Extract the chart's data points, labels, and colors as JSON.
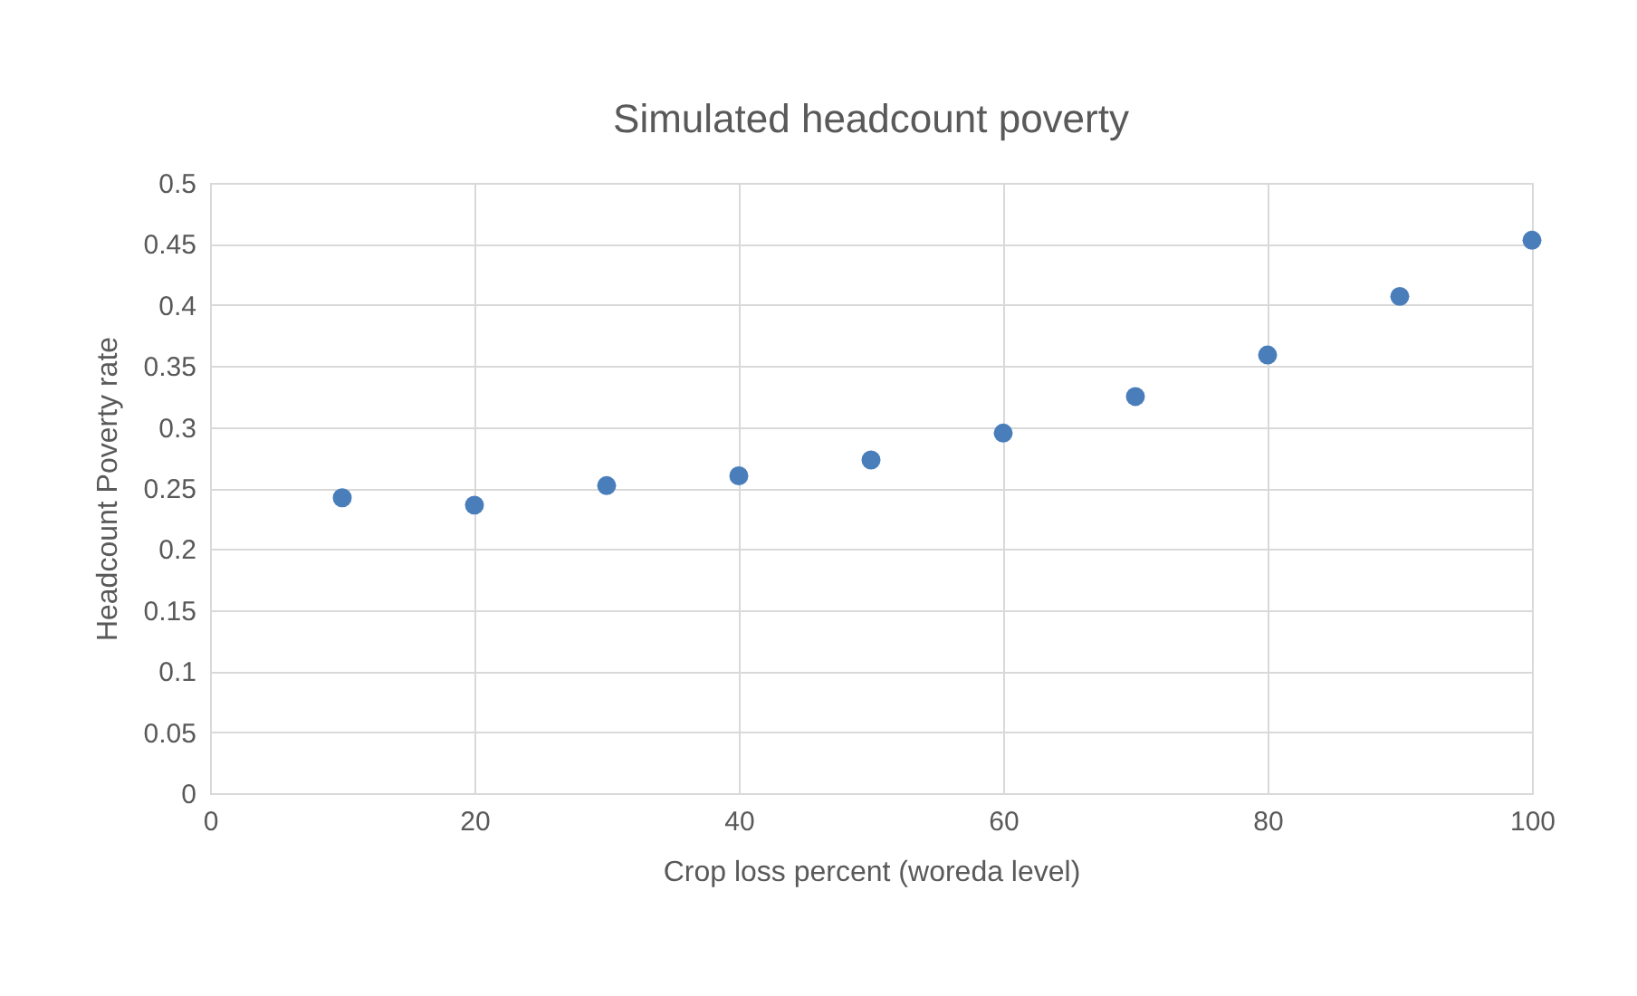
{
  "chart_data": {
    "type": "scatter",
    "title": "Simulated headcount poverty",
    "xlabel": "Crop loss percent (woreda level)",
    "ylabel": "Headcount Poverty rate",
    "x": [
      10,
      20,
      30,
      40,
      50,
      60,
      70,
      80,
      90,
      100
    ],
    "series": [
      {
        "color": "#4a7ebb",
        "values": [
          0.242,
          0.236,
          0.252,
          0.26,
          0.273,
          0.295,
          0.325,
          0.359,
          0.407,
          0.453
        ]
      }
    ],
    "xlim": [
      0,
      100
    ],
    "xticks": [
      0,
      20,
      40,
      60,
      80,
      100
    ],
    "ylim": [
      0,
      0.5
    ],
    "yticks": [
      0,
      0.05,
      0.1,
      0.15,
      0.2,
      0.25,
      0.3,
      0.35,
      0.4,
      0.45,
      0.5
    ],
    "grid": true,
    "marker": "circle",
    "legend": false
  }
}
